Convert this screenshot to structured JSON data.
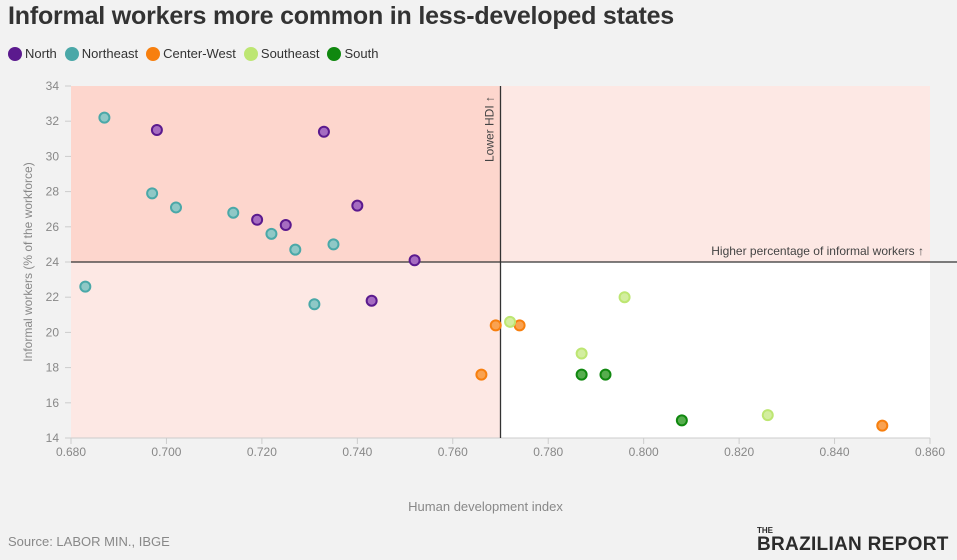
{
  "title": "Informal workers more common in less-developed states",
  "source": "Source: LABOR MIN., IBGE",
  "logo": {
    "the": "THE",
    "main": "BRAZILIAN REPORT"
  },
  "chart_data": {
    "type": "scatter",
    "title": "Informal workers more common in less-developed states",
    "xlabel": "Human development index",
    "ylabel": "Informal workers (% of the workforce)",
    "xlim": [
      0.68,
      0.86
    ],
    "ylim": [
      14,
      34
    ],
    "xticks": [
      "0.680",
      "0.700",
      "0.720",
      "0.740",
      "0.760",
      "0.780",
      "0.800",
      "0.820",
      "0.840",
      "0.860"
    ],
    "yticks": [
      "14",
      "16",
      "18",
      "20",
      "22",
      "24",
      "26",
      "28",
      "30",
      "32",
      "34"
    ],
    "legend_position": "top-left",
    "annotations": {
      "vertical": "Lower HDI ↑",
      "horizontal": "Higher percentage of informal workers ↑"
    },
    "reference_lines": {
      "x": 0.77,
      "y": 24
    },
    "series": [
      {
        "name": "North",
        "color": "#5b1a8e",
        "fill": "#a56cc1",
        "points": [
          [
            0.698,
            31.5
          ],
          [
            0.733,
            31.4
          ],
          [
            0.719,
            26.4
          ],
          [
            0.725,
            26.1
          ],
          [
            0.74,
            27.2
          ],
          [
            0.752,
            24.1
          ],
          [
            0.743,
            21.8
          ]
        ]
      },
      {
        "name": "Northeast",
        "color": "#4aa8a8",
        "fill": "#8fc8c6",
        "points": [
          [
            0.687,
            32.2
          ],
          [
            0.697,
            27.9
          ],
          [
            0.702,
            27.1
          ],
          [
            0.714,
            26.8
          ],
          [
            0.722,
            25.6
          ],
          [
            0.727,
            24.7
          ],
          [
            0.735,
            25.0
          ],
          [
            0.731,
            21.6
          ],
          [
            0.683,
            22.6
          ]
        ]
      },
      {
        "name": "Center-West",
        "color": "#f77f0e",
        "fill": "#f9a251",
        "points": [
          [
            0.769,
            20.4
          ],
          [
            0.774,
            20.4
          ],
          [
            0.766,
            17.6
          ],
          [
            0.85,
            14.7
          ]
        ]
      },
      {
        "name": "Southeast",
        "color": "#bde672",
        "fill": "#d3ee9f",
        "points": [
          [
            0.772,
            20.6
          ],
          [
            0.796,
            22.0
          ],
          [
            0.787,
            18.8
          ],
          [
            0.826,
            15.3
          ]
        ]
      },
      {
        "name": "South",
        "color": "#10880f",
        "fill": "#57ad4e",
        "points": [
          [
            0.787,
            17.6
          ],
          [
            0.792,
            17.6
          ],
          [
            0.808,
            15.0
          ]
        ]
      }
    ]
  }
}
